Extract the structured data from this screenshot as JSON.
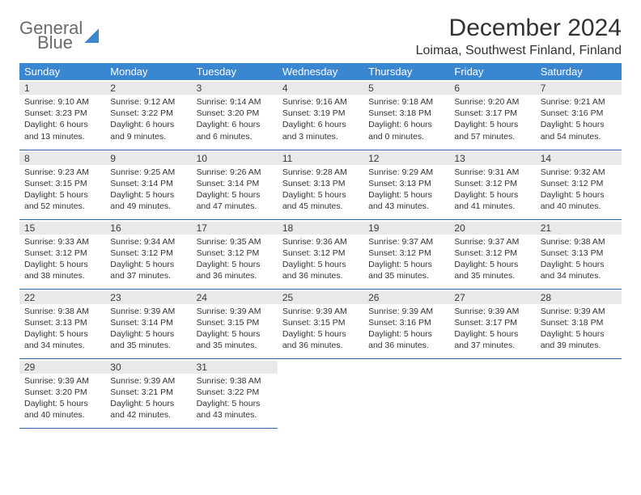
{
  "logo": {
    "line1": "General",
    "line2": "Blue"
  },
  "title": "December 2024",
  "location": "Loimaa, Southwest Finland, Finland",
  "weekdays": [
    "Sunday",
    "Monday",
    "Tuesday",
    "Wednesday",
    "Thursday",
    "Friday",
    "Saturday"
  ],
  "colors": {
    "header_bg": "#3b86d1",
    "header_text": "#ffffff",
    "border": "#2f6aa8",
    "daybar_bg": "#e9e9e9",
    "text": "#333333",
    "logo_gray": "#6b6b6b",
    "logo_blue": "#2f78c4"
  },
  "typography": {
    "title_fontsize": 30,
    "location_fontsize": 16,
    "weekday_fontsize": 13,
    "daynum_fontsize": 12,
    "body_fontsize": 10.5
  },
  "days": [
    {
      "n": "1",
      "sunrise": "9:10 AM",
      "sunset": "3:23 PM",
      "daylight": "6 hours and 13 minutes."
    },
    {
      "n": "2",
      "sunrise": "9:12 AM",
      "sunset": "3:22 PM",
      "daylight": "6 hours and 9 minutes."
    },
    {
      "n": "3",
      "sunrise": "9:14 AM",
      "sunset": "3:20 PM",
      "daylight": "6 hours and 6 minutes."
    },
    {
      "n": "4",
      "sunrise": "9:16 AM",
      "sunset": "3:19 PM",
      "daylight": "6 hours and 3 minutes."
    },
    {
      "n": "5",
      "sunrise": "9:18 AM",
      "sunset": "3:18 PM",
      "daylight": "6 hours and 0 minutes."
    },
    {
      "n": "6",
      "sunrise": "9:20 AM",
      "sunset": "3:17 PM",
      "daylight": "5 hours and 57 minutes."
    },
    {
      "n": "7",
      "sunrise": "9:21 AM",
      "sunset": "3:16 PM",
      "daylight": "5 hours and 54 minutes."
    },
    {
      "n": "8",
      "sunrise": "9:23 AM",
      "sunset": "3:15 PM",
      "daylight": "5 hours and 52 minutes."
    },
    {
      "n": "9",
      "sunrise": "9:25 AM",
      "sunset": "3:14 PM",
      "daylight": "5 hours and 49 minutes."
    },
    {
      "n": "10",
      "sunrise": "9:26 AM",
      "sunset": "3:14 PM",
      "daylight": "5 hours and 47 minutes."
    },
    {
      "n": "11",
      "sunrise": "9:28 AM",
      "sunset": "3:13 PM",
      "daylight": "5 hours and 45 minutes."
    },
    {
      "n": "12",
      "sunrise": "9:29 AM",
      "sunset": "3:13 PM",
      "daylight": "5 hours and 43 minutes."
    },
    {
      "n": "13",
      "sunrise": "9:31 AM",
      "sunset": "3:12 PM",
      "daylight": "5 hours and 41 minutes."
    },
    {
      "n": "14",
      "sunrise": "9:32 AM",
      "sunset": "3:12 PM",
      "daylight": "5 hours and 40 minutes."
    },
    {
      "n": "15",
      "sunrise": "9:33 AM",
      "sunset": "3:12 PM",
      "daylight": "5 hours and 38 minutes."
    },
    {
      "n": "16",
      "sunrise": "9:34 AM",
      "sunset": "3:12 PM",
      "daylight": "5 hours and 37 minutes."
    },
    {
      "n": "17",
      "sunrise": "9:35 AM",
      "sunset": "3:12 PM",
      "daylight": "5 hours and 36 minutes."
    },
    {
      "n": "18",
      "sunrise": "9:36 AM",
      "sunset": "3:12 PM",
      "daylight": "5 hours and 36 minutes."
    },
    {
      "n": "19",
      "sunrise": "9:37 AM",
      "sunset": "3:12 PM",
      "daylight": "5 hours and 35 minutes."
    },
    {
      "n": "20",
      "sunrise": "9:37 AM",
      "sunset": "3:12 PM",
      "daylight": "5 hours and 35 minutes."
    },
    {
      "n": "21",
      "sunrise": "9:38 AM",
      "sunset": "3:13 PM",
      "daylight": "5 hours and 34 minutes."
    },
    {
      "n": "22",
      "sunrise": "9:38 AM",
      "sunset": "3:13 PM",
      "daylight": "5 hours and 34 minutes."
    },
    {
      "n": "23",
      "sunrise": "9:39 AM",
      "sunset": "3:14 PM",
      "daylight": "5 hours and 35 minutes."
    },
    {
      "n": "24",
      "sunrise": "9:39 AM",
      "sunset": "3:15 PM",
      "daylight": "5 hours and 35 minutes."
    },
    {
      "n": "25",
      "sunrise": "9:39 AM",
      "sunset": "3:15 PM",
      "daylight": "5 hours and 36 minutes."
    },
    {
      "n": "26",
      "sunrise": "9:39 AM",
      "sunset": "3:16 PM",
      "daylight": "5 hours and 36 minutes."
    },
    {
      "n": "27",
      "sunrise": "9:39 AM",
      "sunset": "3:17 PM",
      "daylight": "5 hours and 37 minutes."
    },
    {
      "n": "28",
      "sunrise": "9:39 AM",
      "sunset": "3:18 PM",
      "daylight": "5 hours and 39 minutes."
    },
    {
      "n": "29",
      "sunrise": "9:39 AM",
      "sunset": "3:20 PM",
      "daylight": "5 hours and 40 minutes."
    },
    {
      "n": "30",
      "sunrise": "9:39 AM",
      "sunset": "3:21 PM",
      "daylight": "5 hours and 42 minutes."
    },
    {
      "n": "31",
      "sunrise": "9:38 AM",
      "sunset": "3:22 PM",
      "daylight": "5 hours and 43 minutes."
    }
  ],
  "labels": {
    "sunrise": "Sunrise: ",
    "sunset": "Sunset: ",
    "daylight": "Daylight: "
  }
}
